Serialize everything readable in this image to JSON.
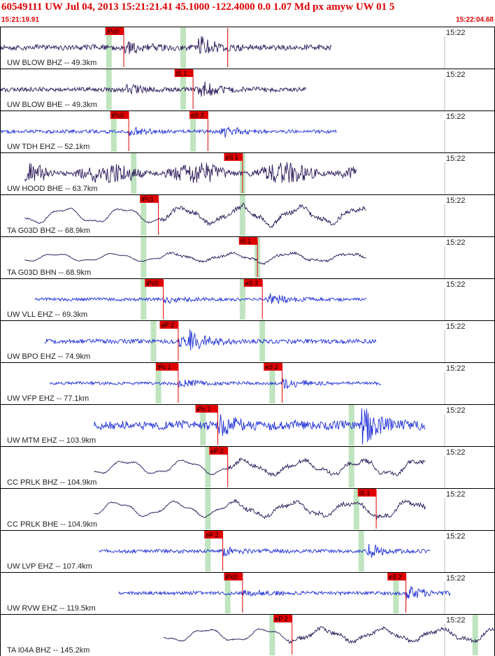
{
  "header": {
    "title": "60549111 UW Jul 04, 2013 15:21:21.41   45.1000 -122.4000  0.0 1.07 Md px amyw UW 01   5",
    "time_start": "15:21:19.91",
    "time_end": "15:22:04.68",
    "color": "#e00000"
  },
  "traces": [
    {
      "label": "UW BLOW BHZ -- 49.3km",
      "tick": "15:22",
      "color": "#2a1858",
      "start": 0.0,
      "end": 0.67,
      "amp": 0.12,
      "kind": "local",
      "onset": 0.25,
      "burst": 0.4,
      "picks": [
        {
          "label": "iPc0",
          "pos": 0.25
        },
        {
          "label": "",
          "pos": 0.46
        }
      ],
      "shades": [
        0.22,
        0.37
      ]
    },
    {
      "label": "UW BLOW BHE -- 49.3km",
      "tick": "15:22",
      "color": "#2a1858",
      "start": 0.0,
      "end": 0.62,
      "amp": 0.1,
      "kind": "local",
      "onset": 0.25,
      "burst": 0.4,
      "picks": [
        {
          "label": "iS 1",
          "pos": 0.39
        }
      ],
      "shades": [
        0.22,
        0.37
      ]
    },
    {
      "label": "UW TDH EHZ -- 52.1km",
      "tick": "15:22",
      "color": "#1f2fd8",
      "start": 0.0,
      "end": 0.68,
      "amp": 0.08,
      "kind": "local",
      "onset": 0.26,
      "burst": 0.44,
      "picks": [
        {
          "label": "iPc0",
          "pos": 0.26
        },
        {
          "label": "eS 2",
          "pos": 0.42
        }
      ],
      "shades": [
        0.23,
        0.39
      ]
    },
    {
      "label": "UW HOOD BHE -- 63.7km",
      "tick": "15:22",
      "color": "#2a1858",
      "start": 0.05,
      "end": 0.72,
      "amp": 0.55,
      "kind": "noise",
      "onset": 0.27,
      "burst": 0.47,
      "picks": [
        {
          "label": "eS 1",
          "pos": 0.49
        }
      ],
      "shades": [
        0.27,
        0.49
      ]
    },
    {
      "label": "TA G03D BHZ -- 68.9km",
      "tick": "15:22",
      "color": "#2a1858",
      "start": 0.05,
      "end": 0.74,
      "amp": 0.42,
      "kind": "wave",
      "onset": 0.32,
      "burst": 0.49,
      "picks": [
        {
          "label": "iPc1",
          "pos": 0.32
        }
      ],
      "shades": [
        0.29,
        0.49
      ]
    },
    {
      "label": "TA G03D BHN -- 68.9km",
      "tick": "15:22",
      "color": "#2a1858",
      "start": 0.05,
      "end": 0.74,
      "amp": 0.22,
      "kind": "wave",
      "onset": 0.32,
      "burst": 0.52,
      "picks": [
        {
          "label": "iS 1",
          "pos": 0.52
        }
      ],
      "shades": [
        0.29,
        0.52
      ]
    },
    {
      "label": "UW VLL EHZ -- 69.3km",
      "tick": "15:22",
      "color": "#1f2fd8",
      "start": 0.07,
      "end": 0.74,
      "amp": 0.07,
      "kind": "local",
      "onset": 0.33,
      "burst": 0.54,
      "picks": [
        {
          "label": "iPc0",
          "pos": 0.33
        },
        {
          "label": "eS 2",
          "pos": 0.53
        }
      ],
      "shades": [
        0.29,
        0.49
      ]
    },
    {
      "label": "UW BPO EHZ -- 74.9km",
      "tick": "15:22",
      "color": "#1f2fd8",
      "start": 0.09,
      "end": 0.76,
      "amp": 0.1,
      "kind": "local",
      "onset": 0.36,
      "burst": 0.38,
      "picks": [
        {
          "label": "eP 2",
          "pos": 0.36
        }
      ],
      "shades": [
        0.31,
        0.53
      ]
    },
    {
      "label": "UW VFP EHZ -- 77.1km",
      "tick": "15:22",
      "color": "#1f2fd8",
      "start": 0.1,
      "end": 0.77,
      "amp": 0.07,
      "kind": "local",
      "onset": 0.36,
      "burst": 0.57,
      "picks": [
        {
          "label": "iPc 1",
          "pos": 0.36
        },
        {
          "label": "eS 2",
          "pos": 0.57
        }
      ],
      "shades": [
        0.32,
        0.55
      ]
    },
    {
      "label": "UW MTM EHZ -- 103.9km",
      "tick": "15:22",
      "color": "#1f2fd8",
      "start": 0.19,
      "end": 0.86,
      "amp": 0.2,
      "kind": "local",
      "onset": 0.44,
      "burst": 0.73,
      "picks": [
        {
          "label": "iPc 1",
          "pos": 0.44
        }
      ],
      "shades": [
        0.41,
        0.71
      ]
    },
    {
      "label": "CC PRLK BHZ -- 104.9km",
      "tick": "15:22",
      "color": "#2a1858",
      "start": 0.19,
      "end": 0.86,
      "amp": 0.38,
      "kind": "wave",
      "onset": 0.46,
      "burst": 0.75,
      "picks": [
        {
          "label": "eP 2",
          "pos": 0.46
        }
      ],
      "shades": [
        0.42,
        0.71
      ]
    },
    {
      "label": "CC PRLK BHE -- 104.9km",
      "tick": "15:22",
      "color": "#2a1858",
      "start": 0.19,
      "end": 0.86,
      "amp": 0.4,
      "kind": "wave",
      "onset": 0.46,
      "burst": 0.76,
      "picks": [
        {
          "label": "iS 1",
          "pos": 0.76
        }
      ],
      "shades": [
        0.42,
        0.72
      ]
    },
    {
      "label": "UW LVP EHZ -- 107.4km",
      "tick": "15:22",
      "color": "#1f2fd8",
      "start": 0.2,
      "end": 0.87,
      "amp": 0.08,
      "kind": "local",
      "onset": 0.45,
      "burst": 0.74,
      "picks": [
        {
          "label": "eP 2",
          "pos": 0.45
        }
      ],
      "shades": [
        0.42,
        0.73
      ]
    },
    {
      "label": "UW RVW EHZ -- 119.5km",
      "tick": "15:22",
      "color": "#1f2fd8",
      "start": 0.24,
      "end": 0.91,
      "amp": 0.08,
      "kind": "local",
      "onset": 0.49,
      "burst": 0.82,
      "picks": [
        {
          "label": "iPc0",
          "pos": 0.49
        },
        {
          "label": "eS 2",
          "pos": 0.82
        }
      ],
      "shades": [
        0.46,
        0.8
      ]
    },
    {
      "label": "TA I04A BHZ -- 145.2km",
      "tick": "15:22",
      "color": "#2a1858",
      "start": 0.33,
      "end": 1.0,
      "amp": 0.35,
      "kind": "wave",
      "onset": 0.58,
      "burst": 0.98,
      "picks": [
        {
          "label": "eP 2",
          "pos": 0.59
        }
      ],
      "shades": [
        0.55,
        0.96
      ]
    }
  ]
}
